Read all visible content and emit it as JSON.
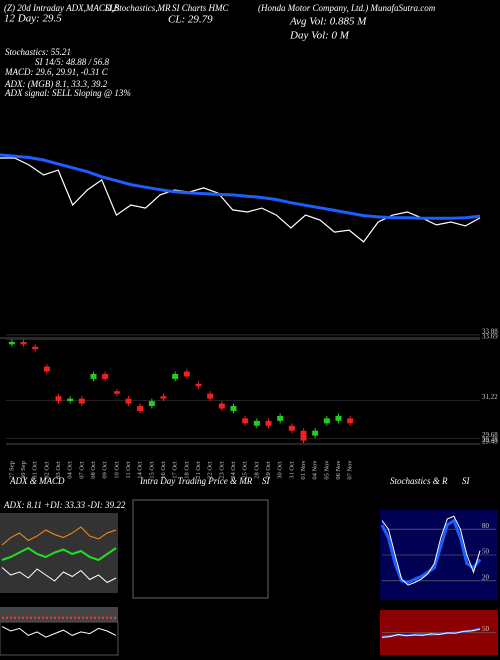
{
  "header": {
    "l1": "(Z) 20d Intraday ADX,MACD,B",
    "l2": "SI,Stochastics,MR",
    "l3": "SI Charts HMC",
    "l4": "(Honda Motor Company, Ltd.) MunafaSutra.com",
    "day12": "12 Day: 29.5",
    "cl": "CL: 29.79",
    "avgvol": "Avg Vol: 0.885 M",
    "dayvol": "Day Vol: 0 M",
    "stoch": "Stochastics: 55.21",
    "si": "SI 14/5: 48.88 / 56.8",
    "macd": "MACD: 29.6, 29.91, -0.31 C",
    "adx": "ADX: (MGB) 8.1, 33.3, 39.2",
    "adxsig": "ADX signal: SELL Sloping @ 13%"
  },
  "chart_data": [
    {
      "type": "line",
      "ylim": [
        28.5,
        34.5
      ],
      "series": [
        {
          "color": "#ffffff",
          "width": 1.2,
          "values": [
            33.03,
            33.03,
            32.76,
            32.37,
            32.56,
            31.21,
            31.79,
            32.18,
            30.82,
            31.21,
            31.09,
            31.6,
            31.79,
            31.71,
            31.87,
            31.67,
            31.02,
            30.94,
            31.09,
            30.82,
            30.32,
            30.82,
            30.63,
            30.16,
            30.24,
            29.78,
            30.55,
            30.82,
            30.94,
            30.71,
            30.44,
            30.55,
            30.4,
            30.71
          ]
        },
        {
          "color": "#1e5eff",
          "width": 3,
          "values": [
            33.15,
            33.1,
            33.05,
            32.95,
            32.8,
            32.65,
            32.5,
            32.3,
            32.15,
            32.0,
            31.9,
            31.8,
            31.72,
            31.68,
            31.65,
            31.62,
            31.6,
            31.55,
            31.5,
            31.42,
            31.3,
            31.2,
            31.1,
            31.0,
            30.9,
            30.8,
            30.75,
            30.72,
            30.72,
            30.7,
            30.7,
            30.7,
            30.72,
            30.78
          ]
        }
      ]
    },
    {
      "type": "candlestick",
      "ylim": [
        29.3,
        34.0
      ],
      "up_color": "#22cc22",
      "down_color": "#ee2222",
      "yticks": [
        33.88,
        33.69,
        31.22,
        29.68,
        29.48,
        29.43
      ],
      "categories": [
        "27 Sep",
        "30 Sep",
        "01 Oct",
        "02 Oct",
        "03 Oct",
        "04 Oct",
        "07 Oct",
        "08 Oct",
        "09 Oct",
        "10 Oct",
        "11 Oct",
        "14 Oct",
        "15 Oct",
        "16 Oct",
        "17 Oct",
        "18 Oct",
        "21 Oct",
        "22 Oct",
        "23 Oct",
        "24 Oct",
        "25 Oct",
        "28 Oct",
        "29 Oct",
        "30 Oct",
        "31 Oct",
        "01 Nov",
        "04 Nov",
        "05 Nov",
        "06 Nov",
        "07 Nov"
      ],
      "open": [
        33.5,
        33.6,
        33.4,
        32.6,
        31.4,
        31.2,
        31.3,
        32.1,
        32.3,
        31.6,
        31.3,
        31.0,
        31.0,
        31.4,
        32.1,
        32.4,
        31.9,
        31.5,
        31.1,
        30.8,
        30.5,
        30.2,
        30.4,
        30.4,
        30.2,
        30.0,
        29.8,
        30.3,
        30.4,
        30.5
      ],
      "high": [
        33.7,
        33.7,
        33.5,
        32.7,
        31.5,
        31.4,
        31.4,
        32.4,
        32.4,
        31.7,
        31.4,
        31.1,
        31.3,
        31.5,
        32.4,
        32.5,
        32.0,
        31.6,
        31.2,
        31.1,
        30.6,
        30.5,
        30.5,
        30.7,
        30.3,
        30.1,
        30.1,
        30.6,
        30.7,
        30.6
      ],
      "low": [
        33.4,
        33.4,
        33.2,
        32.3,
        31.1,
        31.1,
        31.0,
        32.0,
        32.0,
        31.4,
        31.0,
        30.7,
        30.9,
        31.2,
        32.0,
        32.1,
        31.7,
        31.2,
        30.8,
        30.7,
        30.2,
        30.1,
        30.1,
        30.3,
        29.9,
        29.5,
        29.7,
        30.2,
        30.3,
        30.2
      ],
      "close": [
        33.6,
        33.5,
        33.3,
        32.4,
        31.2,
        31.3,
        31.1,
        32.3,
        32.1,
        31.5,
        31.1,
        30.8,
        31.2,
        31.3,
        32.3,
        32.2,
        31.8,
        31.3,
        30.9,
        31.0,
        30.3,
        30.4,
        30.2,
        30.6,
        30.0,
        29.6,
        30.0,
        30.5,
        30.6,
        30.3
      ]
    },
    {
      "type": "line",
      "title": "ADX & MACD",
      "subtitle": "ADX: 8.11 +DI: 33.33 -DI: 39.22",
      "ylim": [
        0,
        50
      ],
      "series": [
        {
          "color": "#22dd22",
          "width": 2,
          "values": [
            20,
            22,
            25,
            28,
            24,
            22,
            25,
            27,
            24,
            26,
            22,
            20,
            24,
            28
          ]
        },
        {
          "color": "#ff8c1a",
          "width": 1,
          "values": [
            30,
            35,
            38,
            33,
            36,
            40,
            37,
            35,
            38,
            42,
            36,
            34,
            38,
            40
          ]
        },
        {
          "color": "#ffffff",
          "width": 1,
          "values": [
            15,
            10,
            12,
            8,
            14,
            10,
            6,
            12,
            9,
            13,
            7,
            10,
            5,
            8
          ]
        }
      ]
    },
    {
      "type": "line",
      "ylim": [
        0,
        50
      ],
      "series": [
        {
          "color": "#ff3333",
          "width": 2,
          "dash": true,
          "values": [
            40,
            40,
            40,
            40,
            40,
            40,
            40,
            40,
            40,
            40,
            40,
            40,
            40,
            40
          ]
        },
        {
          "color": "#ffffff",
          "width": 1,
          "values": [
            30,
            25,
            28,
            20,
            24,
            18,
            22,
            26,
            20,
            24,
            22,
            28,
            25,
            20
          ]
        }
      ]
    },
    {
      "type": "line",
      "title": "Intra Day Trading Price & MR",
      "subtitle": "SI",
      "series": []
    },
    {
      "type": "line",
      "title": "Stochastics & R",
      "subtitle": "SI",
      "ylim": [
        0,
        100
      ],
      "yticks": [
        20,
        50,
        80
      ],
      "series": [
        {
          "color": "#1e5eff",
          "width": 3,
          "values": [
            85,
            70,
            40,
            20,
            18,
            22,
            25,
            30,
            35,
            60,
            85,
            90,
            70,
            40,
            35,
            45
          ]
        },
        {
          "color": "#ffffff",
          "width": 1,
          "values": [
            90,
            80,
            50,
            22,
            15,
            18,
            22,
            28,
            40,
            70,
            92,
            95,
            80,
            50,
            30,
            55
          ]
        }
      ]
    },
    {
      "type": "line",
      "ylim": [
        0,
        100
      ],
      "yticks": [
        50
      ],
      "series": [
        {
          "color": "#1e5eff",
          "width": 2,
          "values": [
            40,
            42,
            44,
            43,
            45,
            46,
            44,
            47,
            48,
            50,
            52,
            55,
            60
          ]
        },
        {
          "color": "#ffffff",
          "width": 1,
          "values": [
            38,
            40,
            45,
            42,
            44,
            43,
            47,
            45,
            49,
            48,
            53,
            54,
            58
          ]
        }
      ]
    }
  ]
}
